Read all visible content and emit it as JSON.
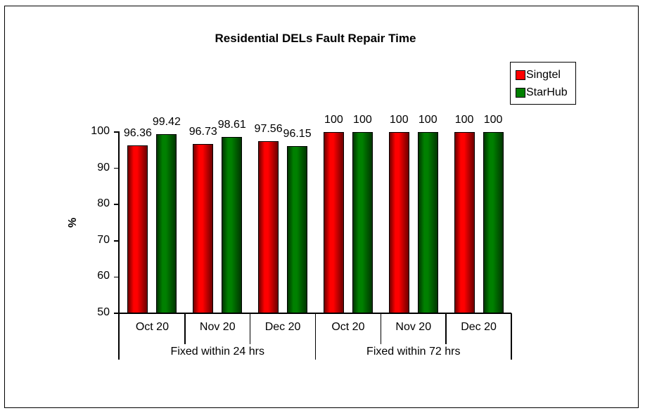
{
  "chart": {
    "title": "Residential DELs Fault Repair Time",
    "y_axis_title": "%"
  },
  "legend": {
    "entries": [
      {
        "label": "Singtel",
        "color": "#ff0000"
      },
      {
        "label": "StarHub",
        "color": "#008000"
      }
    ]
  },
  "chart_data": {
    "type": "bar",
    "title": "Residential DELs Fault Repair Time",
    "xlabel": "",
    "ylabel": "%",
    "ylim": [
      50,
      100
    ],
    "ytick_step": 10,
    "grid": false,
    "legend_position": "top-right",
    "group_labels": [
      "Fixed within 24 hrs",
      "Fixed within 72 hrs"
    ],
    "categories": [
      "Oct 20",
      "Nov 20",
      "Dec 20",
      "Oct 20",
      "Nov 20",
      "Dec 20"
    ],
    "category_group_index": [
      0,
      0,
      0,
      1,
      1,
      1
    ],
    "series": [
      {
        "name": "Singtel",
        "color": "#ff0000",
        "color_dark": "#6e0000",
        "values": [
          96.36,
          96.73,
          97.56,
          100,
          100,
          100
        ]
      },
      {
        "name": "StarHub",
        "color": "#008000",
        "color_dark": "#013601",
        "values": [
          99.42,
          98.61,
          96.15,
          100,
          100,
          100
        ]
      }
    ],
    "data_labels": [
      "96.36",
      "99.42",
      "96.73",
      "98.61",
      "97.56",
      "96.15",
      "100",
      "100",
      "100",
      "100",
      "100",
      "100"
    ]
  }
}
